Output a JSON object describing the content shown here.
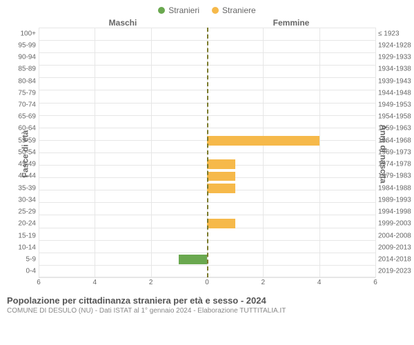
{
  "legend": {
    "male": {
      "label": "Stranieri",
      "color": "#6aa84f"
    },
    "female": {
      "label": "Straniere",
      "color": "#f6b94a"
    }
  },
  "headers": {
    "male": "Maschi",
    "female": "Femmine"
  },
  "axes": {
    "left_label": "Fasce di età",
    "right_label": "Anni di nascita",
    "xmax": 6,
    "xticks": [
      6,
      4,
      2,
      0,
      2,
      4,
      6
    ]
  },
  "style": {
    "grid_color": "#e6e6e6",
    "center_dash_color": "#7a7a2a",
    "background": "#ffffff",
    "label_color": "#666666"
  },
  "rows": [
    {
      "age": "100+",
      "birth": "≤ 1923",
      "m": 0,
      "f": 0
    },
    {
      "age": "95-99",
      "birth": "1924-1928",
      "m": 0,
      "f": 0
    },
    {
      "age": "90-94",
      "birth": "1929-1933",
      "m": 0,
      "f": 0
    },
    {
      "age": "85-89",
      "birth": "1934-1938",
      "m": 0,
      "f": 0
    },
    {
      "age": "80-84",
      "birth": "1939-1943",
      "m": 0,
      "f": 0
    },
    {
      "age": "75-79",
      "birth": "1944-1948",
      "m": 0,
      "f": 0
    },
    {
      "age": "70-74",
      "birth": "1949-1953",
      "m": 0,
      "f": 0
    },
    {
      "age": "65-69",
      "birth": "1954-1958",
      "m": 0,
      "f": 0
    },
    {
      "age": "60-64",
      "birth": "1959-1963",
      "m": 0,
      "f": 0
    },
    {
      "age": "55-59",
      "birth": "1964-1968",
      "m": 0,
      "f": 4
    },
    {
      "age": "50-54",
      "birth": "1969-1973",
      "m": 0,
      "f": 0
    },
    {
      "age": "45-49",
      "birth": "1974-1978",
      "m": 0,
      "f": 1
    },
    {
      "age": "40-44",
      "birth": "1979-1983",
      "m": 0,
      "f": 1
    },
    {
      "age": "35-39",
      "birth": "1984-1988",
      "m": 0,
      "f": 1
    },
    {
      "age": "30-34",
      "birth": "1989-1993",
      "m": 0,
      "f": 0
    },
    {
      "age": "25-29",
      "birth": "1994-1998",
      "m": 0,
      "f": 0
    },
    {
      "age": "20-24",
      "birth": "1999-2003",
      "m": 0,
      "f": 1
    },
    {
      "age": "15-19",
      "birth": "2004-2008",
      "m": 0,
      "f": 0
    },
    {
      "age": "10-14",
      "birth": "2009-2013",
      "m": 0,
      "f": 0
    },
    {
      "age": "5-9",
      "birth": "2014-2018",
      "m": 1,
      "f": 0
    },
    {
      "age": "0-4",
      "birth": "2019-2023",
      "m": 0,
      "f": 0
    }
  ],
  "footer": {
    "title": "Popolazione per cittadinanza straniera per età e sesso - 2024",
    "subtitle": "COMUNE DI DESULO (NU) - Dati ISTAT al 1° gennaio 2024 - Elaborazione TUTTITALIA.IT"
  }
}
